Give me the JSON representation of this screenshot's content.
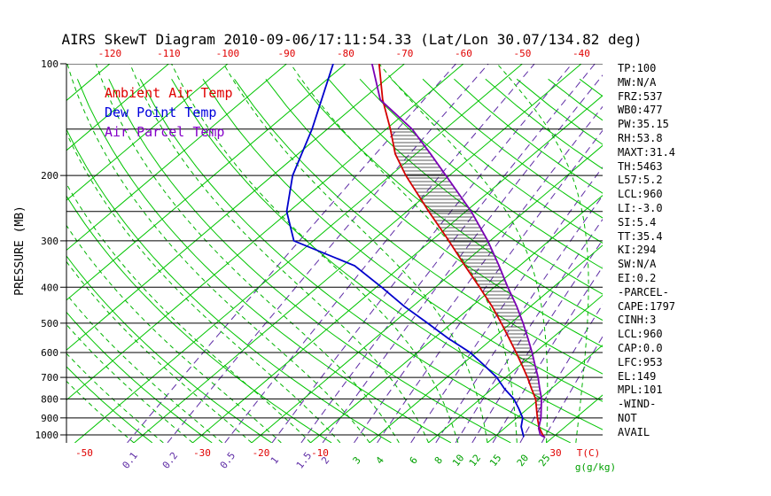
{
  "title": "AIRS SkewT Diagram 2010-09-06/17:11:54.33 (Lat/Lon 30.07/134.82 deg)",
  "legend": [
    {
      "label": "Ambient Air Temp",
      "color": "#e00000"
    },
    {
      "label": "Dew Point Temp",
      "color": "#0000dd"
    },
    {
      "label": "Air Parcel Temp",
      "color": "#8400c8"
    }
  ],
  "stats": [
    "TP:100",
    "MW:N/A",
    "FRZ:537",
    "WB0:477",
    "PW:35.15",
    "RH:53.8",
    "MAXT:31.4",
    "TH:5463",
    "L57:5.2",
    "LCL:960",
    "LI:-3.0",
    "SI:5.4",
    "TT:35.4",
    "KI:294",
    "SW:N/A",
    "EI:0.2",
    "-PARCEL-",
    "CAPE:1797",
    "CINH:3",
    "LCL:960",
    "CAP:0.0",
    "LFC:953",
    "EL:149",
    "MPL:101",
    "-WIND-",
    "NOT",
    "AVAIL"
  ],
  "axes": {
    "pressure_axis_label": "PRESSURE (MB)",
    "pressure_ticks": [
      100,
      200,
      300,
      400,
      500,
      600,
      700,
      800,
      900,
      1000
    ],
    "pressure_lines": [
      100,
      150,
      200,
      250,
      300,
      400,
      500,
      600,
      700,
      800,
      900,
      1000
    ],
    "top_temperature_ticks": [
      -120,
      -110,
      -100,
      -90,
      -80,
      -70,
      -60,
      -50,
      -40
    ],
    "bottom_temperature_ticks": [
      -50,
      -30,
      -20,
      -10,
      30
    ],
    "temperature_unit_label": "T(C)",
    "mixing_ratio_unit_label": "g(g/kg)",
    "mixing_ratio_labels": [
      {
        "value": "0.1",
        "color": "#5e2ca5"
      },
      {
        "value": "0.2",
        "color": "#5e2ca5"
      },
      {
        "value": "0.5",
        "color": "#5e2ca5"
      },
      {
        "value": "1",
        "color": "#5e2ca5"
      },
      {
        "value": "1.5",
        "color": "#5e2ca5"
      },
      {
        "value": "2",
        "color": "#5e2ca5"
      },
      {
        "value": "3",
        "color": "#00a000"
      },
      {
        "value": "4",
        "color": "#00a000"
      },
      {
        "value": "6",
        "color": "#00a000"
      },
      {
        "value": "8",
        "color": "#00a000"
      },
      {
        "value": "10",
        "color": "#00a000"
      },
      {
        "value": "12",
        "color": "#00a000"
      },
      {
        "value": "15",
        "color": "#00a000"
      },
      {
        "value": "20",
        "color": "#00a000"
      },
      {
        "value": "25",
        "color": "#00a000"
      }
    ]
  },
  "chart_data": {
    "type": "line",
    "chart_kind": "skewt_logp",
    "title": "AIRS SkewT Diagram 2010-09-06/17:11:54.33 (Lat/Lon 30.07/134.82 deg)",
    "xlabel": "T(C)",
    "ylabel": "PRESSURE (MB)",
    "pressure_range": [
      100,
      1050
    ],
    "legend_position": "upper-left",
    "series": [
      {
        "name": "Ambient Air Temp",
        "color": "#d40000",
        "points_pressure_temp": [
          [
            1013,
            28.5
          ],
          [
            1000,
            27.8
          ],
          [
            950,
            25.5
          ],
          [
            900,
            23.5
          ],
          [
            850,
            21.5
          ],
          [
            800,
            19.4
          ],
          [
            750,
            16.6
          ],
          [
            700,
            13.7
          ],
          [
            650,
            10.4
          ],
          [
            600,
            6.8
          ],
          [
            550,
            2.8
          ],
          [
            500,
            -1.6
          ],
          [
            450,
            -6.6
          ],
          [
            400,
            -12.5
          ],
          [
            350,
            -19.3
          ],
          [
            300,
            -27.0
          ],
          [
            250,
            -36.3
          ],
          [
            200,
            -47.4
          ],
          [
            175,
            -53.5
          ],
          [
            150,
            -59.3
          ],
          [
            125,
            -66.5
          ],
          [
            100,
            -74.3
          ]
        ]
      },
      {
        "name": "Dew Point Temp",
        "color": "#0000cc",
        "points_pressure_temp": [
          [
            1013,
            25.0
          ],
          [
            1000,
            24.5
          ],
          [
            950,
            22.5
          ],
          [
            900,
            21.0
          ],
          [
            850,
            18.5
          ],
          [
            800,
            15.7
          ],
          [
            750,
            12.0
          ],
          [
            700,
            8.5
          ],
          [
            650,
            4.0
          ],
          [
            600,
            -1.0
          ],
          [
            550,
            -7.5
          ],
          [
            500,
            -14.1
          ],
          [
            450,
            -21.5
          ],
          [
            400,
            -29.1
          ],
          [
            350,
            -38.0
          ],
          [
            300,
            -53.3
          ],
          [
            250,
            -60.4
          ],
          [
            200,
            -66.6
          ],
          [
            150,
            -72.6
          ],
          [
            100,
            -82.1
          ]
        ]
      },
      {
        "name": "Air Parcel Temp",
        "color": "#7a00b4",
        "points_pressure_temp": [
          [
            1013,
            28.5
          ],
          [
            1000,
            27.4
          ],
          [
            960,
            25.8
          ],
          [
            900,
            24.1
          ],
          [
            850,
            22.3
          ],
          [
            800,
            20.4
          ],
          [
            750,
            18.0
          ],
          [
            700,
            15.5
          ],
          [
            650,
            12.6
          ],
          [
            600,
            9.5
          ],
          [
            550,
            6.0
          ],
          [
            500,
            2.1
          ],
          [
            450,
            -2.4
          ],
          [
            400,
            -7.7
          ],
          [
            350,
            -13.5
          ],
          [
            300,
            -20.4
          ],
          [
            250,
            -29.1
          ],
          [
            200,
            -40.6
          ],
          [
            175,
            -47.5
          ],
          [
            150,
            -55.6
          ],
          [
            125,
            -66.9
          ],
          [
            100,
            -75.5
          ]
        ]
      }
    ],
    "cape_hatch": {
      "between": [
        "Ambient Air Temp",
        "Air Parcel Temp"
      ],
      "pressure_top": 150,
      "pressure_bottom": 950
    },
    "background_lines": {
      "isotherm_step_c": 10,
      "isotherm_min_c": -160,
      "isotherm_max_c": 50,
      "dry_adiabat_theta_k": {
        "min": 233,
        "max": 453,
        "step": 10
      },
      "moist_adiabat_start_c": {
        "min": -40,
        "max": 40,
        "step": 5
      },
      "mixing_ratio_g_per_kg": [
        0.1,
        0.2,
        0.5,
        1,
        1.5,
        2,
        3,
        4,
        6,
        8,
        10,
        12,
        15,
        20,
        25
      ]
    },
    "colors": {
      "isotherm": "#00c400",
      "dry_adiabat": "#00c400",
      "moist_adiabat": "#00b400",
      "mixing_ratio": "#5e2ca5",
      "pressure_line": "#000000",
      "hatch": "#222222",
      "axis_label_red": "#e00000",
      "green_label": "#00a000"
    }
  }
}
